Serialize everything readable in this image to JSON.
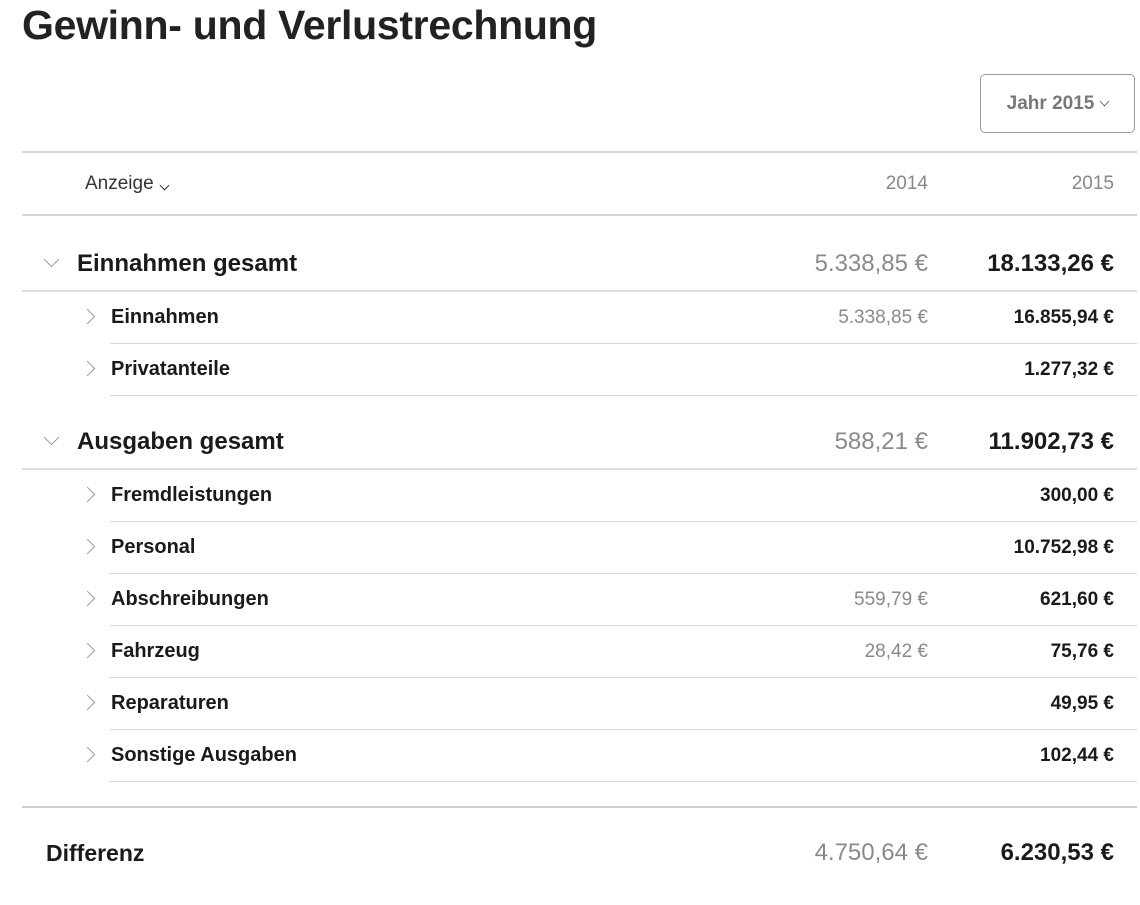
{
  "page_title": "Gewinn- und Verlustrechnung",
  "year_selector": {
    "label": "Jahr 2015",
    "icon": "chevron-down-icon"
  },
  "header": {
    "display_label": "Anzeige",
    "col_2014": "2014",
    "col_2015": "2015"
  },
  "groups": [
    {
      "label": "Einnahmen gesamt",
      "v2014": "5.338,85 €",
      "v2015": "18.133,26 €",
      "items": [
        {
          "label": "Einnahmen",
          "v2014": "5.338,85 €",
          "v2015": "16.855,94 €"
        },
        {
          "label": "Privatanteile",
          "v2014": "",
          "v2015": "1.277,32 €"
        }
      ]
    },
    {
      "label": "Ausgaben gesamt",
      "v2014": "588,21 €",
      "v2015": "11.902,73 €",
      "items": [
        {
          "label": "Fremdleistungen",
          "v2014": "",
          "v2015": "300,00 €"
        },
        {
          "label": "Personal",
          "v2014": "",
          "v2015": "10.752,98 €"
        },
        {
          "label": "Abschreibungen",
          "v2014": "559,79 €",
          "v2015": "621,60 €"
        },
        {
          "label": "Fahrzeug",
          "v2014": "28,42 €",
          "v2015": "75,76 €"
        },
        {
          "label": "Reparaturen",
          "v2014": "",
          "v2015": "49,95 €"
        },
        {
          "label": "Sonstige Ausgaben",
          "v2014": "",
          "v2015": "102,44 €"
        }
      ]
    }
  ],
  "difference": {
    "label": "Differenz",
    "v2014": "4.750,64 €",
    "v2015": "6.230,53 €"
  }
}
